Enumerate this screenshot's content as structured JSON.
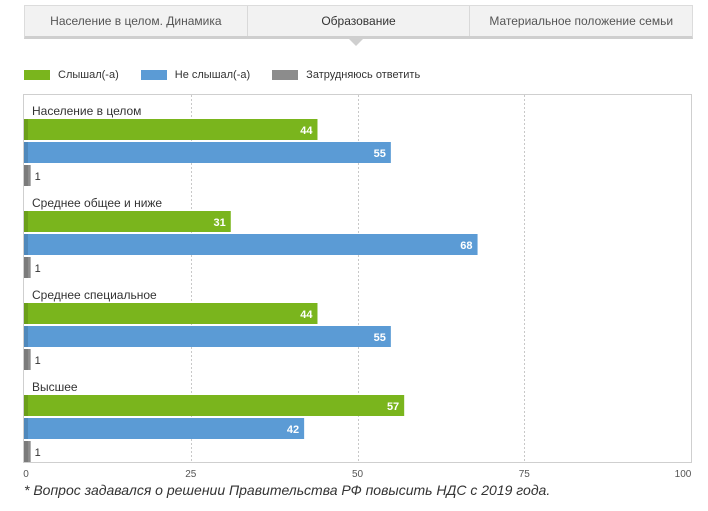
{
  "tabs": [
    {
      "label": "Население в целом. Динамика",
      "active": false
    },
    {
      "label": "Образование",
      "active": true
    },
    {
      "label": "Материальное положение семьи",
      "active": false
    }
  ],
  "legend": [
    {
      "label": "Слышал(-а)",
      "color": "#7ab51d"
    },
    {
      "label": "Не слышал(-а)",
      "color": "#5b9bd5"
    },
    {
      "label": "Затрудняюсь ответить",
      "color": "#8c8c8c"
    }
  ],
  "chart_data": {
    "type": "bar",
    "orientation": "horizontal",
    "categories": [
      "Население в целом",
      "Среднее общее и ниже",
      "Среднее специальное",
      "Высшее"
    ],
    "series": [
      {
        "name": "Слышал(-а)",
        "color": "#7ab51d",
        "values": [
          44,
          31,
          44,
          57
        ]
      },
      {
        "name": "Не слышал(-а)",
        "color": "#5b9bd5",
        "values": [
          55,
          68,
          55,
          42
        ]
      },
      {
        "name": "Затрудняюсь ответить",
        "color": "#8c8c8c",
        "values": [
          1,
          1,
          1,
          1
        ]
      }
    ],
    "xlim": [
      0,
      100
    ],
    "xticks": [
      0,
      25,
      50,
      75,
      100
    ],
    "grid": true,
    "legend_position": "top-left"
  },
  "footnote": "* Вопрос задавался о решении Правительства РФ повысить НДС с 2019 года."
}
